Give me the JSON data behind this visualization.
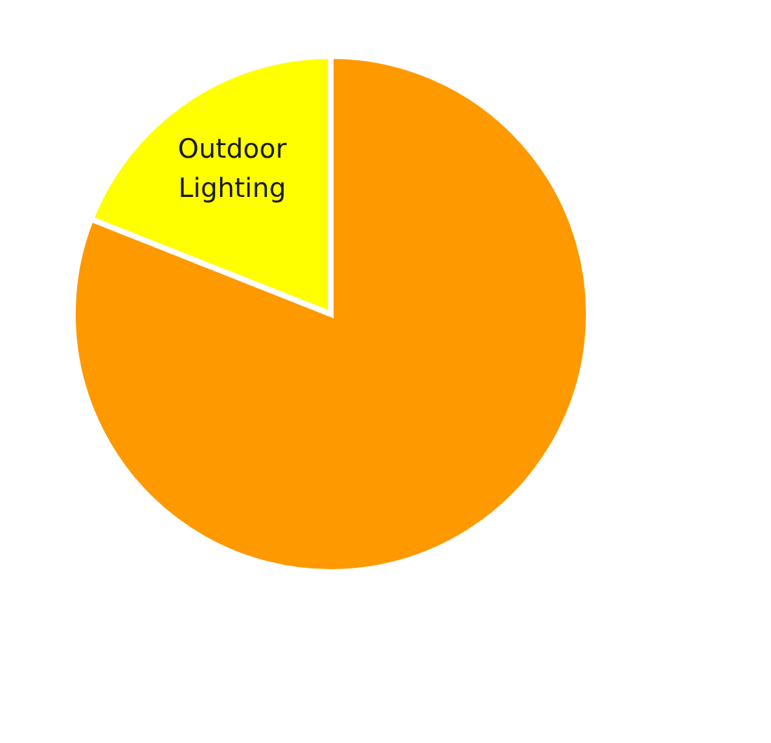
{
  "chart_data": {
    "type": "pie",
    "categories": [
      null,
      "Outdoor Lighting"
    ],
    "values": [
      81,
      19
    ],
    "colors": [
      "#ff9900",
      "#ffff00"
    ]
  }
}
